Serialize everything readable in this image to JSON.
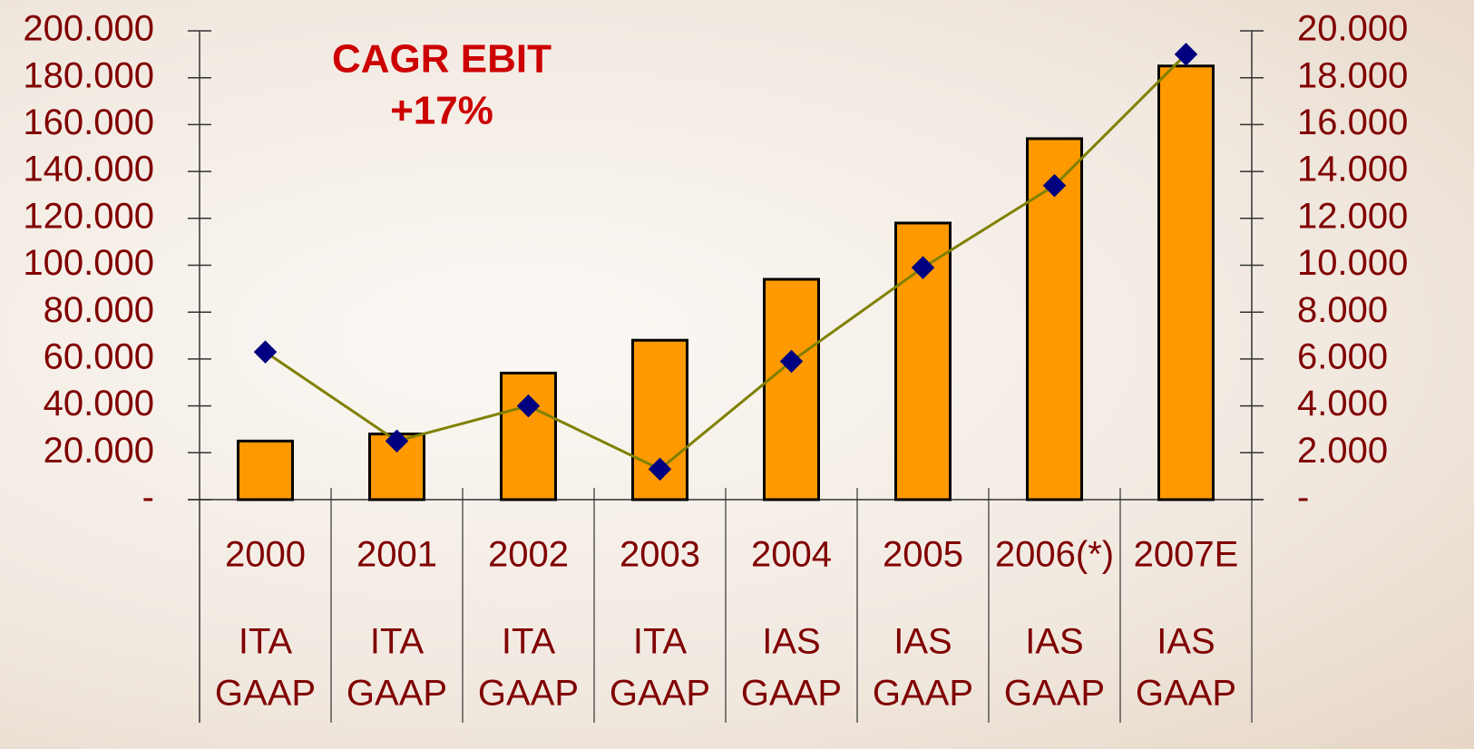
{
  "chart_data": {
    "type": "bar-line",
    "annotation": [
      "CAGR EBIT",
      "+17%"
    ],
    "categories": [
      "2000",
      "2001",
      "2002",
      "2003",
      "2004",
      "2005",
      "2006(*)",
      "2007E"
    ],
    "accounting": [
      [
        "ITA",
        "GAAP"
      ],
      [
        "ITA",
        "GAAP"
      ],
      [
        "ITA",
        "GAAP"
      ],
      [
        "ITA",
        "GAAP"
      ],
      [
        "IAS",
        "GAAP"
      ],
      [
        "IAS",
        "GAAP"
      ],
      [
        "IAS",
        "GAAP"
      ],
      [
        "IAS",
        "GAAP"
      ]
    ],
    "series": [
      {
        "type": "bar",
        "color": "#ff9900",
        "values": [
          25000,
          28000,
          54000,
          68000,
          94000,
          118000,
          154000,
          185000
        ]
      },
      {
        "type": "line",
        "axis": "y2",
        "color": "#808000",
        "marker_color": "#000080",
        "values": [
          6300,
          2500,
          4000,
          1300,
          5900,
          9900,
          13400,
          19000
        ]
      }
    ],
    "ylim": [
      0,
      200000
    ],
    "yticks": [
      {
        "value": 0,
        "label": "-"
      },
      {
        "value": 20000,
        "label": "20.000"
      },
      {
        "value": 40000,
        "label": "40.000"
      },
      {
        "value": 60000,
        "label": "60.000"
      },
      {
        "value": 80000,
        "label": "80.000"
      },
      {
        "value": 100000,
        "label": "100.000"
      },
      {
        "value": 120000,
        "label": "120.000"
      },
      {
        "value": 140000,
        "label": "140.000"
      },
      {
        "value": 160000,
        "label": "160.000"
      },
      {
        "value": 180000,
        "label": "180.000"
      },
      {
        "value": 200000,
        "label": "200.000"
      }
    ],
    "y2lim": [
      0,
      20000
    ],
    "y2ticks": [
      {
        "value": 0,
        "label": "-"
      },
      {
        "value": 2000,
        "label": "2.000"
      },
      {
        "value": 4000,
        "label": "4.000"
      },
      {
        "value": 6000,
        "label": "6.000"
      },
      {
        "value": 8000,
        "label": "8.000"
      },
      {
        "value": 10000,
        "label": "10.000"
      },
      {
        "value": 12000,
        "label": "12.000"
      },
      {
        "value": 14000,
        "label": "14.000"
      },
      {
        "value": 16000,
        "label": "16.000"
      },
      {
        "value": 18000,
        "label": "18.000"
      },
      {
        "value": 20000,
        "label": "20.000"
      }
    ]
  }
}
